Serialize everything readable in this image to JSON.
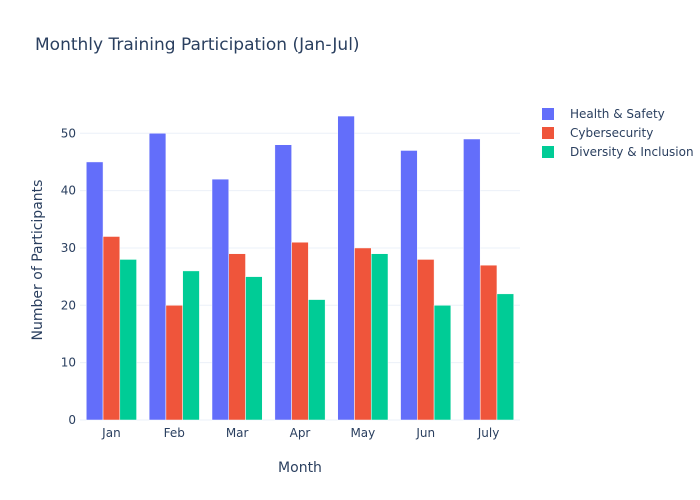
{
  "chart_data": {
    "type": "bar",
    "title": "Monthly Training Participation (Jan-Jul)",
    "xlabel": "Month",
    "ylabel": "Number of Participants",
    "categories": [
      "Jan",
      "Feb",
      "Mar",
      "Apr",
      "May",
      "Jun",
      "July"
    ],
    "series": [
      {
        "name": "Health & Safety",
        "color": "#636efa",
        "values": [
          45,
          50,
          42,
          48,
          53,
          47,
          49
        ]
      },
      {
        "name": "Cybersecurity",
        "color": "#ef553b",
        "values": [
          32,
          20,
          29,
          31,
          30,
          28,
          27
        ]
      },
      {
        "name": "Diversity & Inclusion",
        "color": "#00cc96",
        "values": [
          28,
          26,
          25,
          21,
          29,
          20,
          22
        ]
      }
    ],
    "ylim": [
      0,
      55.8
    ],
    "yticks": [
      0,
      10,
      20,
      30,
      40,
      50
    ],
    "grid": true,
    "legend_position": "top-right"
  }
}
